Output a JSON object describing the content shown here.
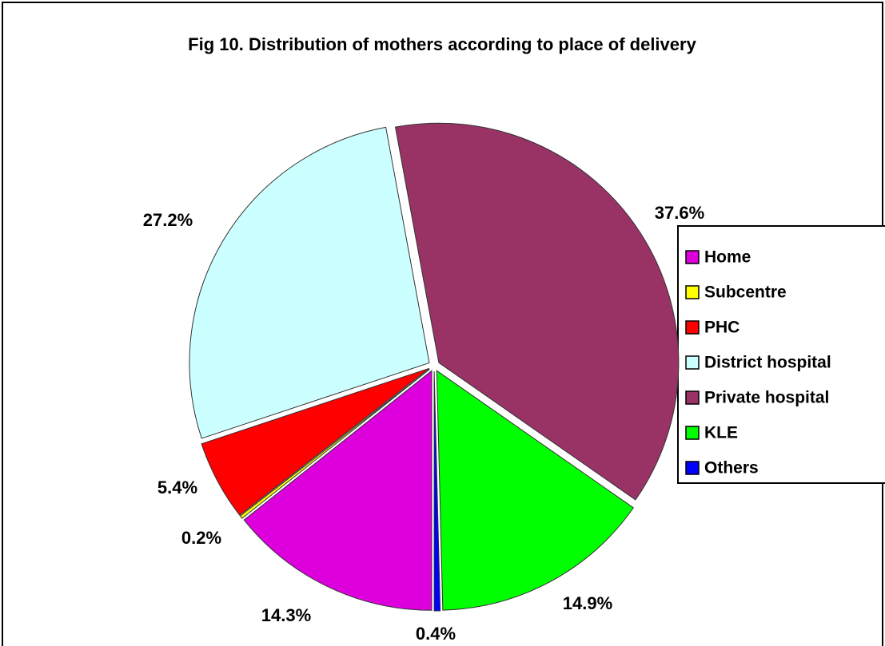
{
  "chart_data": {
    "type": "pie",
    "title": "Fig 10. Distribution of mothers according to place of delivery",
    "categories": [
      "Home",
      "Subcentre",
      "PHC",
      "District hospital",
      "Private hospital",
      "KLE",
      "Others"
    ],
    "values": [
      14.3,
      0.2,
      5.4,
      27.2,
      37.6,
      14.9,
      0.4
    ],
    "value_labels": [
      "14.3%",
      "0.2%",
      "5.4%",
      "27.2%",
      "37.6%",
      "14.9%",
      "0.4%"
    ],
    "colors": [
      "#dd00dd",
      "#ffff00",
      "#ff0000",
      "#ccffff",
      "#993366",
      "#00ff00",
      "#0000ff"
    ],
    "legend": "right"
  }
}
